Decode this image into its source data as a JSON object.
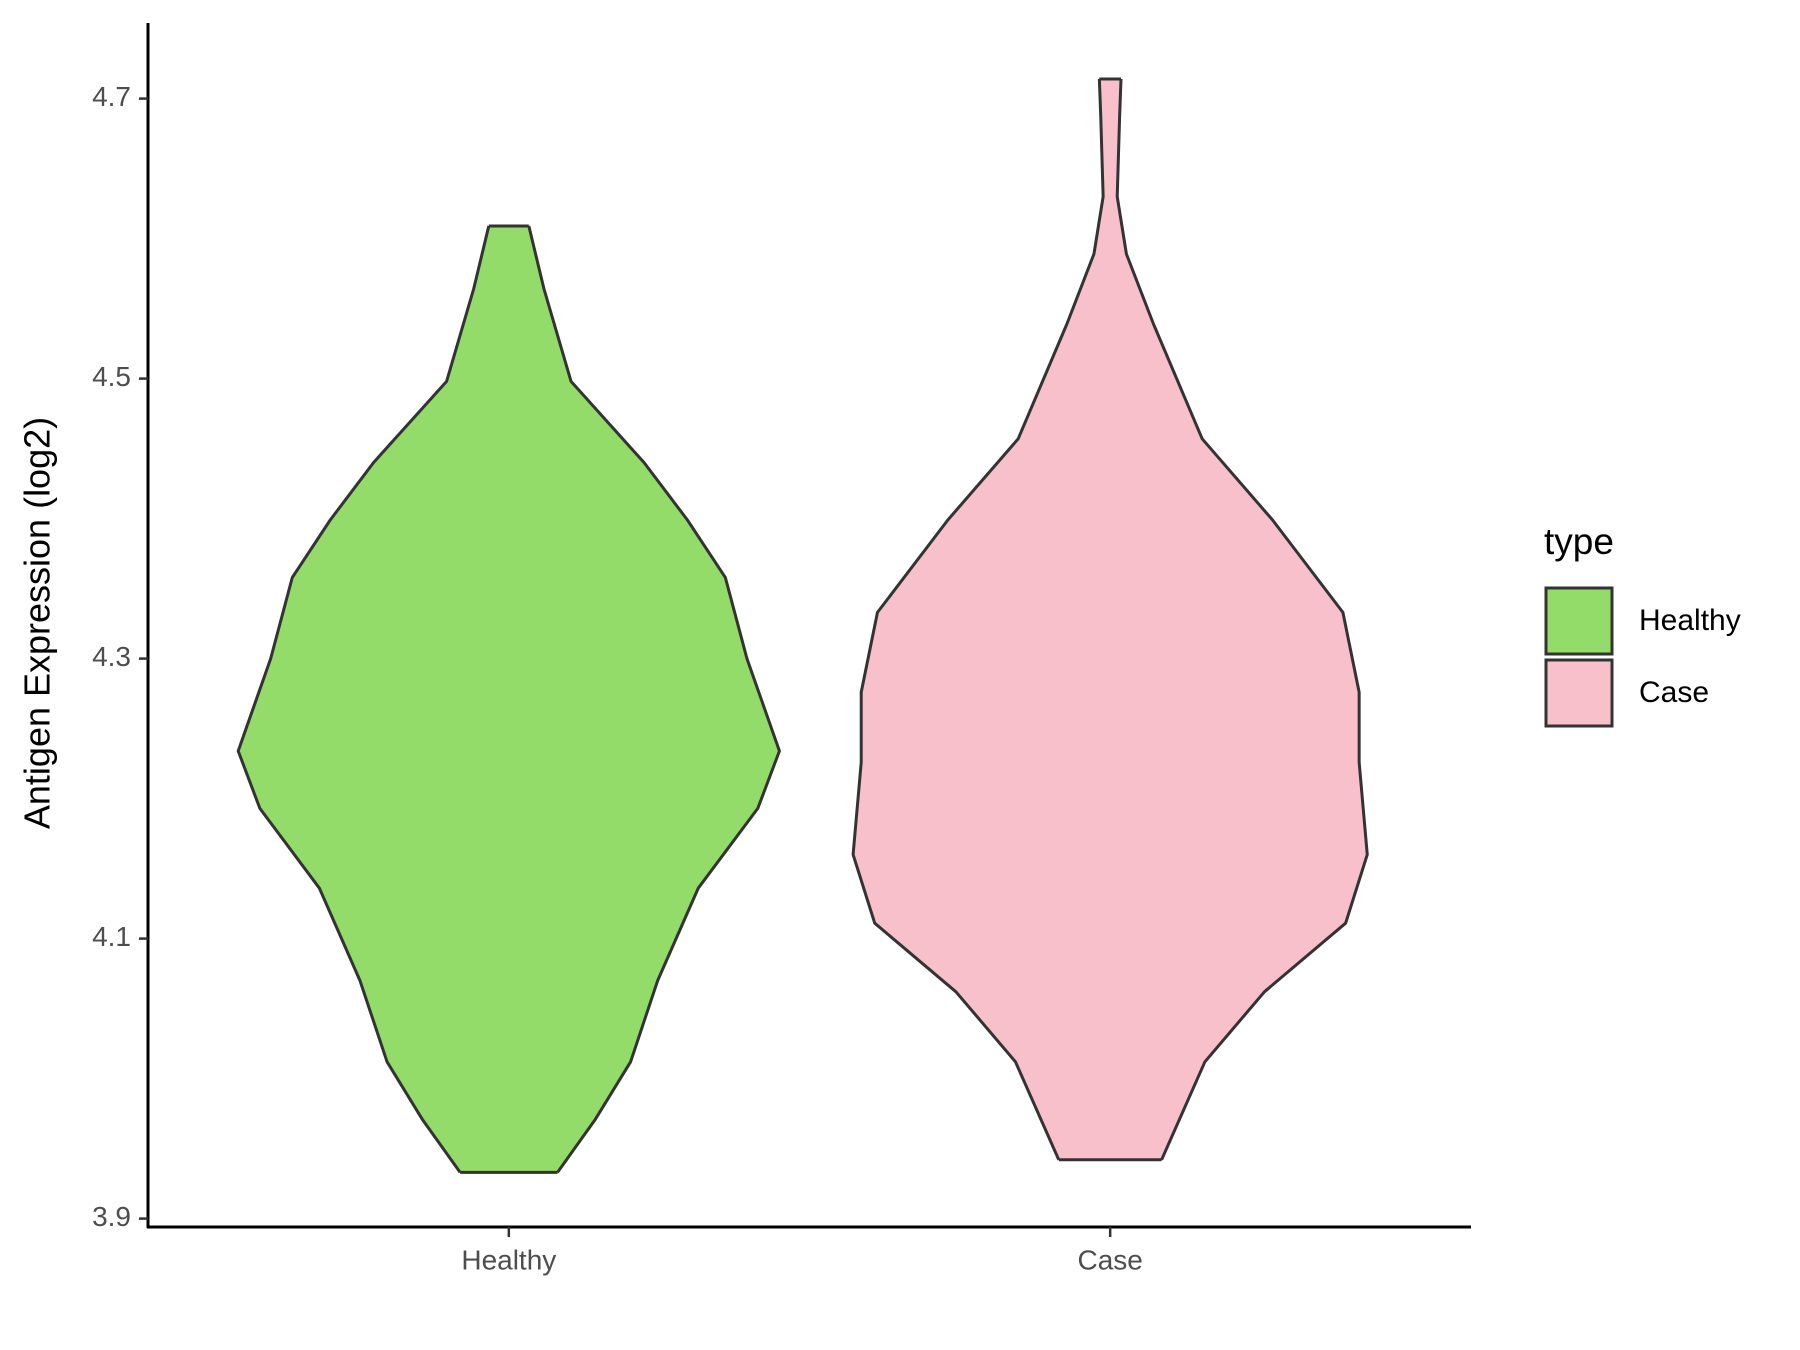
{
  "chart_data": {
    "type": "violin",
    "y_label": "Antigen Expression (log2)",
    "categories": [
      "Healthy",
      "Case"
    ],
    "ylim": [
      3.894,
      4.754
    ],
    "yticks": [
      {
        "value": 3.9,
        "label": "3.9"
      },
      4.1,
      4.3,
      4.5,
      4.7
    ],
    "legend_title": "type",
    "legend_position": "right",
    "series": [
      {
        "name": "Healthy",
        "color": "#93dc6a",
        "y": [
          3.933,
          3.971,
          4.012,
          4.07,
          4.136,
          4.193,
          4.234,
          4.3,
          4.358,
          4.399,
          4.44,
          4.498,
          4.564,
          4.609
        ],
        "half_width": [
          0.18,
          0.32,
          0.45,
          0.55,
          0.7,
          0.92,
          1.0,
          0.88,
          0.8,
          0.66,
          0.5,
          0.23,
          0.13,
          0.074
        ]
      },
      {
        "name": "Case",
        "color": "#f7c0cb",
        "y": [
          3.942,
          4.012,
          4.062,
          4.111,
          4.16,
          4.226,
          4.276,
          4.333,
          4.399,
          4.457,
          4.539,
          4.589,
          4.63,
          4.688,
          4.714
        ],
        "half_width": [
          0.19,
          0.35,
          0.57,
          0.87,
          0.95,
          0.92,
          0.92,
          0.86,
          0.6,
          0.34,
          0.16,
          0.06,
          0.026,
          0.035,
          0.04
        ]
      }
    ]
  }
}
